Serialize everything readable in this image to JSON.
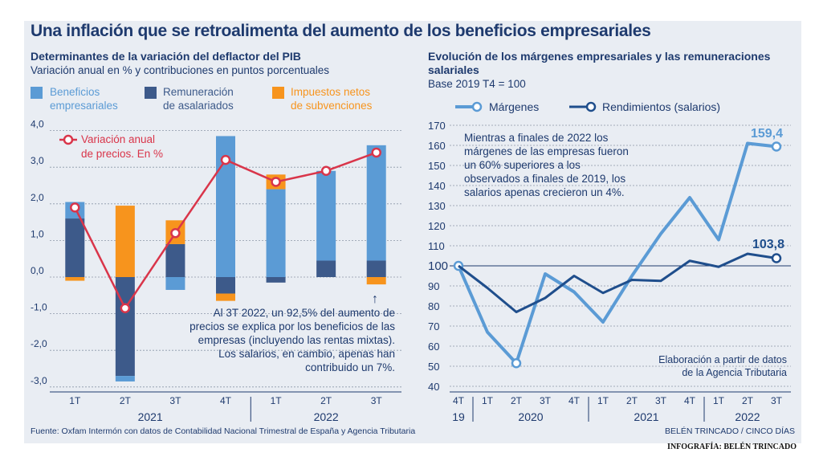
{
  "title": "Una inflación que se retroalimenta del aumento de los beneficios empresariales",
  "source": "Fuente: Oxfam Intermón con datos de Contabilidad Nacional Trimestral de España y Agencia Tributaria",
  "credit_small": "BELÉN TRINCADO / CINCO DÍAS",
  "credit_footer": "INFOGRAFÍA: BELÉN TRINCADO",
  "colors": {
    "beneficios": "#5b9bd5",
    "remuneracion": "#3d5a8a",
    "impuestos": "#f7941d",
    "inflacion_line": "#d9354a",
    "margenes": "#5b9bd5",
    "rendimientos": "#1f4e8c",
    "text": "#1e3a6e",
    "panel_bg": "#e9edf3"
  },
  "left": {
    "title": "Determinantes de la variación del deflactor del PIB",
    "subtitle": "Variación anual en % y contribuciones en puntos porcentuales",
    "legend": {
      "beneficios": [
        "Beneficios",
        "empresariales"
      ],
      "remuneracion": [
        "Remuneración",
        "de asalariados"
      ],
      "impuestos": [
        "Impuestos netos",
        "de subvenciones"
      ],
      "inflacion": [
        "Variación anual",
        "de precios. En %"
      ]
    },
    "annotation": [
      "Al 3T 2022, un 92,5% del aumento de",
      "precios se explica por los beneficios de las",
      "empresas (incluyendo las rentas mixtas).",
      "Los salarios, en cambio, apenas han",
      "contribuido un 7%."
    ],
    "arrow_glyph": "↑"
  },
  "right": {
    "title_line1": "Evolución de los márgenes empresariales y las remuneraciones",
    "title_line2": "salariales",
    "subtitle": "Base 2019 T4 = 100",
    "legend_margenes": "Márgenes",
    "legend_rendimientos": "Rendimientos (salarios)",
    "annotation": [
      "Mientras a finales de 2022 los",
      "márgenes de las empresas fueron",
      "un 60% superiores a los",
      "observados a finales de 2019, los",
      "salarios apenas crecieron un 4%."
    ],
    "note": [
      "Elaboración a partir de datos",
      "de la Agencia Tributaria"
    ],
    "label_last_margenes": "159,4",
    "label_last_rendimientos": "103,8"
  },
  "chart_data": [
    {
      "type": "bar",
      "stacked": true,
      "title": "Determinantes de la variación del deflactor del PIB",
      "subtitle": "Variación anual en % y contribuciones en puntos porcentuales",
      "categories": [
        "1T",
        "2T",
        "3T",
        "4T",
        "1T",
        "2T",
        "3T"
      ],
      "groups": [
        {
          "label": "2021",
          "categories": [
            0,
            1,
            2,
            3
          ]
        },
        {
          "label": "2022",
          "categories": [
            4,
            5,
            6
          ]
        }
      ],
      "yticks": [
        "4,0",
        "3,0",
        "2,0",
        "1,0",
        "0,0",
        "-1,0",
        "-2,0",
        "-3,0"
      ],
      "ylim": [
        -3.0,
        4.0
      ],
      "series": [
        {
          "name": "Remuneración de asalariados",
          "values": [
            1.6,
            -2.7,
            0.9,
            -0.45,
            -0.15,
            0.45,
            0.45
          ]
        },
        {
          "name": "Beneficios empresariales",
          "values": [
            0.45,
            -0.15,
            -0.35,
            3.85,
            2.4,
            2.45,
            3.15
          ]
        },
        {
          "name": "Impuestos netos de subvenciones",
          "values": [
            -0.1,
            1.95,
            0.65,
            -0.2,
            0.4,
            0.0,
            -0.2
          ]
        }
      ],
      "line": {
        "name": "Variación anual de precios. En %",
        "values": [
          1.9,
          -0.85,
          1.2,
          3.2,
          2.6,
          2.9,
          3.4
        ]
      },
      "grid": true
    },
    {
      "type": "line",
      "title": "Evolución de los márgenes empresariales y las remuneraciones salariales",
      "subtitle": "Base 2019 T4 = 100",
      "categories": [
        "4T",
        "1T",
        "2T",
        "3T",
        "4T",
        "1T",
        "2T",
        "3T",
        "4T",
        "1T",
        "2T",
        "3T"
      ],
      "groups": [
        {
          "label": "19",
          "categories": [
            0
          ]
        },
        {
          "label": "2020",
          "categories": [
            1,
            2,
            3,
            4
          ]
        },
        {
          "label": "2021",
          "categories": [
            5,
            6,
            7,
            8
          ]
        },
        {
          "label": "2022",
          "categories": [
            9,
            10,
            11
          ]
        }
      ],
      "yticks": [
        170,
        160,
        150,
        140,
        130,
        120,
        110,
        100,
        90,
        80,
        70,
        60,
        50,
        40
      ],
      "ylim": [
        40,
        170
      ],
      "series": [
        {
          "name": "Márgenes",
          "values": [
            100,
            67,
            51.5,
            96,
            87,
            72,
            95,
            116,
            134,
            113,
            161,
            159.4
          ]
        },
        {
          "name": "Rendimientos (salarios)",
          "values": [
            100,
            89,
            77,
            84,
            95,
            86.5,
            93,
            92.5,
            102.5,
            99.5,
            106,
            103.8
          ]
        }
      ],
      "grid": true
    }
  ]
}
